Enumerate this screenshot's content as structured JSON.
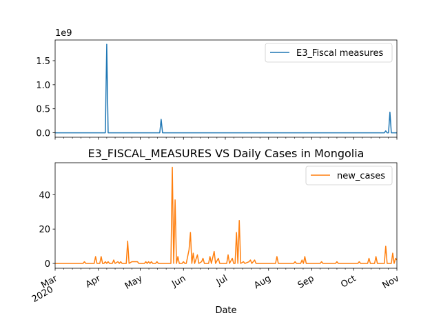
{
  "chart_data": [
    {
      "type": "line",
      "title": "",
      "xlabel": "",
      "ylabel": "",
      "ylim": [
        -0.092,
        1.93
      ],
      "xlim": [
        0,
        245
      ],
      "y_offset_label": "1e9",
      "yticks": [
        0.0,
        0.5,
        1.0,
        1.5
      ],
      "ytick_labels": [
        "0.0",
        "0.5",
        "1.0",
        "1.5"
      ],
      "grid": false,
      "legend_position": "upper right",
      "series": [
        {
          "name": "E3_Fiscal measures",
          "color": "#1f77b4",
          "points": [
            [
              0,
              0
            ],
            [
              36,
              0
            ],
            [
              37,
              1.84
            ],
            [
              38,
              0
            ],
            [
              75,
              0
            ],
            [
              76,
              0.28
            ],
            [
              77,
              0
            ],
            [
              236,
              0
            ],
            [
              237,
              0.04
            ],
            [
              238,
              0
            ],
            [
              239,
              0
            ],
            [
              240,
              0.43
            ],
            [
              241,
              0
            ],
            [
              245,
              0
            ]
          ]
        }
      ]
    },
    {
      "type": "line",
      "title": "E3_FISCAL_MEASURES VS Daily Cases in Mongolia",
      "xlabel": "Date",
      "ylabel": "",
      "ylim": [
        -2.8,
        58.6
      ],
      "xlim": [
        0,
        245
      ],
      "yticks": [
        0,
        20,
        40
      ],
      "ytick_labels": [
        "0",
        "20",
        "40"
      ],
      "grid": false,
      "legend_position": "upper right",
      "xticks": [
        {
          "day": 0,
          "label": "Mar",
          "sublabel": "2020"
        },
        {
          "day": 31,
          "label": "Apr"
        },
        {
          "day": 61,
          "label": "May"
        },
        {
          "day": 92,
          "label": "Jun"
        },
        {
          "day": 122,
          "label": "Jul"
        },
        {
          "day": 153,
          "label": "Aug"
        },
        {
          "day": 184,
          "label": "Sep"
        },
        {
          "day": 214,
          "label": "Oct"
        },
        {
          "day": 245,
          "label": "Nov"
        }
      ],
      "series": [
        {
          "name": "new_cases",
          "color": "#ff7f0e",
          "points": [
            [
              0,
              0
            ],
            [
              20,
              0
            ],
            [
              21,
              1
            ],
            [
              22,
              0
            ],
            [
              28,
              0
            ],
            [
              29,
              4
            ],
            [
              30,
              0
            ],
            [
              32,
              0
            ],
            [
              33,
              4
            ],
            [
              34,
              0
            ],
            [
              35,
              0
            ],
            [
              36,
              1
            ],
            [
              37,
              0
            ],
            [
              38,
              1
            ],
            [
              39,
              0
            ],
            [
              41,
              0
            ],
            [
              42,
              2
            ],
            [
              43,
              0
            ],
            [
              45,
              1
            ],
            [
              46,
              0
            ],
            [
              47,
              1
            ],
            [
              48,
              0
            ],
            [
              51,
              0
            ],
            [
              52,
              13
            ],
            [
              53,
              0
            ],
            [
              55,
              1
            ],
            [
              56,
              1
            ],
            [
              57,
              1
            ],
            [
              58,
              1
            ],
            [
              59,
              1
            ],
            [
              60,
              0
            ],
            [
              61,
              0
            ],
            [
              62,
              0
            ],
            [
              64,
              0
            ],
            [
              65,
              1
            ],
            [
              66,
              0
            ],
            [
              67,
              1
            ],
            [
              68,
              0
            ],
            [
              69,
              1
            ],
            [
              70,
              0
            ],
            [
              72,
              0
            ],
            [
              73,
              1
            ],
            [
              74,
              0
            ],
            [
              83,
              0
            ],
            [
              84,
              56
            ],
            [
              85,
              0
            ],
            [
              86,
              37
            ],
            [
              87,
              0
            ],
            [
              88,
              4
            ],
            [
              89,
              0
            ],
            [
              91,
              0
            ],
            [
              92,
              1
            ],
            [
              93,
              0
            ],
            [
              94,
              0
            ],
            [
              96,
              8
            ],
            [
              97,
              18
            ],
            [
              98,
              0
            ],
            [
              99,
              6
            ],
            [
              100,
              0
            ],
            [
              102,
              5
            ],
            [
              103,
              0
            ],
            [
              105,
              1
            ],
            [
              106,
              3
            ],
            [
              107,
              0
            ],
            [
              110,
              0
            ],
            [
              111,
              4
            ],
            [
              112,
              0
            ],
            [
              114,
              7
            ],
            [
              115,
              0
            ],
            [
              117,
              3
            ],
            [
              118,
              0
            ],
            [
              121,
              0
            ],
            [
              122,
              0
            ],
            [
              123,
              0
            ],
            [
              124,
              5
            ],
            [
              125,
              0
            ],
            [
              127,
              3
            ],
            [
              128,
              0
            ],
            [
              129,
              0
            ],
            [
              130,
              18
            ],
            [
              131,
              0
            ],
            [
              132,
              25
            ],
            [
              133,
              0
            ],
            [
              135,
              1
            ],
            [
              136,
              0
            ],
            [
              139,
              1
            ],
            [
              140,
              2
            ],
            [
              141,
              0
            ],
            [
              143,
              2
            ],
            [
              144,
              0
            ],
            [
              158,
              0
            ],
            [
              159,
              4
            ],
            [
              160,
              0
            ],
            [
              171,
              0
            ],
            [
              172,
              1
            ],
            [
              173,
              0
            ],
            [
              176,
              0
            ],
            [
              177,
              2
            ],
            [
              178,
              0
            ],
            [
              179,
              4
            ],
            [
              180,
              0
            ],
            [
              190,
              0
            ],
            [
              191,
              1
            ],
            [
              192,
              0
            ],
            [
              201,
              0
            ],
            [
              202,
              1
            ],
            [
              203,
              0
            ],
            [
              217,
              0
            ],
            [
              218,
              1
            ],
            [
              219,
              0
            ],
            [
              224,
              0
            ],
            [
              225,
              3
            ],
            [
              226,
              0
            ],
            [
              229,
              0
            ],
            [
              230,
              4
            ],
            [
              231,
              0
            ],
            [
              236,
              0
            ],
            [
              237,
              10
            ],
            [
              238,
              0
            ],
            [
              241,
              0
            ],
            [
              242,
              6
            ],
            [
              243,
              0
            ],
            [
              244,
              3
            ],
            [
              245,
              2
            ]
          ]
        }
      ]
    }
  ]
}
